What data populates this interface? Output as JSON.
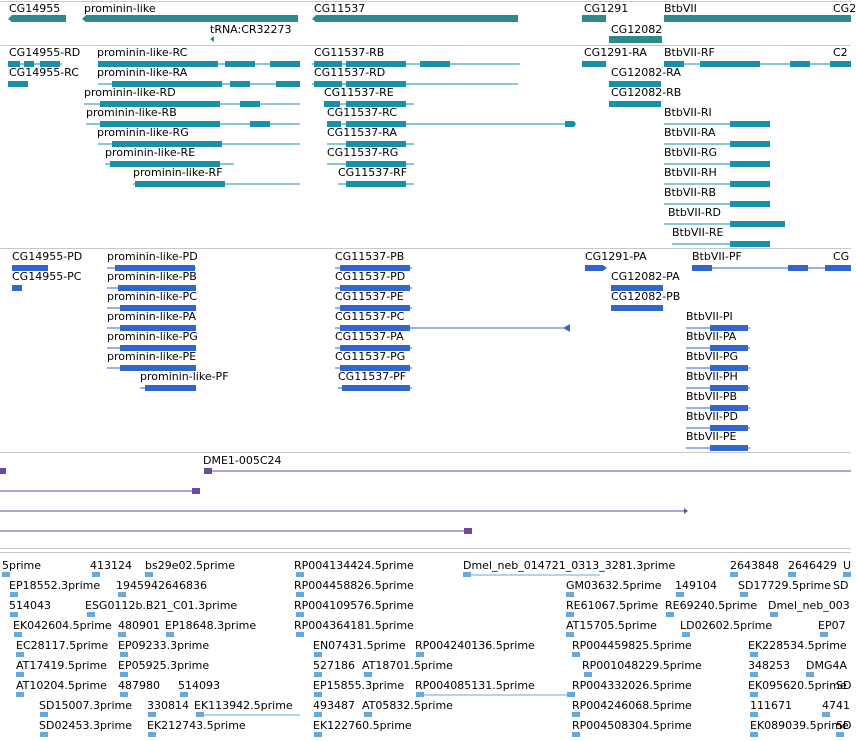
{
  "colors": {
    "teal": "#1a8fa8",
    "tealDark": "#2b8b8b",
    "blue": "#3366cc",
    "purple": "#6a4c9c",
    "est": "#66aadd"
  },
  "gene_track": {
    "labels": [
      "CG14955",
      "prominin-like",
      "tRNA:CR32273",
      "CG11537",
      "CG1291",
      "CG12082",
      "BtbVII",
      "CG2"
    ]
  },
  "transcript_track": {
    "labels": [
      "CG14955-RD",
      "CG14955-RC",
      "prominin-like-RC",
      "prominin-like-RA",
      "prominin-like-RD",
      "prominin-like-RB",
      "prominin-like-RG",
      "prominin-like-RE",
      "prominin-like-RF",
      "CG11537-RB",
      "CG11537-RD",
      "CG11537-RE",
      "CG11537-RC",
      "CG11537-RA",
      "CG11537-RG",
      "CG11537-RF",
      "CG1291-RA",
      "CG12082-RA",
      "CG12082-RB",
      "BtbVII-RF",
      "BtbVII-RI",
      "BtbVII-RA",
      "BtbVII-RG",
      "BtbVII-RH",
      "BtbVII-RB",
      "BtbVII-RD",
      "BtbVII-RE",
      "C2"
    ]
  },
  "protein_track": {
    "labels": [
      "CG14955-PD",
      "CG14955-PC",
      "prominin-like-PD",
      "prominin-like-PB",
      "prominin-like-PC",
      "prominin-like-PA",
      "prominin-like-PG",
      "prominin-like-PE",
      "prominin-like-PF",
      "CG11537-PB",
      "CG11537-PD",
      "CG11537-PE",
      "CG11537-PC",
      "CG11537-PA",
      "CG11537-PG",
      "CG11537-PF",
      "CG1291-PA",
      "CG12082-PA",
      "CG12082-PB",
      "BtbVII-PF",
      "BtbVII-PI",
      "BtbVII-PA",
      "BtbVII-PG",
      "BtbVII-PH",
      "BtbVII-PB",
      "BtbVII-PD",
      "BtbVII-PE",
      "CG"
    ]
  },
  "clone_track": {
    "labels": [
      "DME1-005C24"
    ]
  },
  "est_track": {
    "labels": [
      "5prime",
      "413124",
      "bs29e02.5prime",
      "RP004134424.5prime",
      "Dmel_neb_014721_0313_3281.3prime",
      "2643848",
      "2646429",
      "U",
      "EP18552.3prime",
      "1945942646836",
      "RP004458826.5prime",
      "GM03632.5prime",
      "149104",
      "SD17729.5prime",
      "SD",
      "514043",
      "ESG0112b.B21_C01.3prime",
      "RP004109576.5prime",
      "RE61067.5prime",
      "RE69240.5prime",
      "Dmel_neb_003",
      "EK042604.5prime",
      "480901",
      "EP18648.3prime",
      "RP004364181.5prime",
      "AT15705.5prime",
      "LD02602.5prime",
      "EP07",
      "EC28117.5prime",
      "EP09233.3prime",
      "EN07431.5prime",
      "RP004240136.5prime",
      "RP004459825.5prime",
      "EK228534.5prime",
      "AT17419.5prime",
      "EP05925.3prime",
      "527186",
      "AT18701.5prime",
      "RP001048229.5prime",
      "348253",
      "DMG4A",
      "AT10204.5prime",
      "487980",
      "514093",
      "EP15855.3prime",
      "RP004085131.5prime",
      "RP004332026.5prime",
      "EK095620.5prime",
      "SD",
      "SD15007.3prime",
      "330814",
      "EK113942.5prime",
      "493487",
      "AT05832.5prime",
      "RP004246068.5prime",
      "111671",
      "4741",
      "SD02453.3prime",
      "EK212743.5prime",
      "EK122760.5prime",
      "RP004508304.5prime",
      "EK089039.5prime",
      "SD"
    ]
  }
}
